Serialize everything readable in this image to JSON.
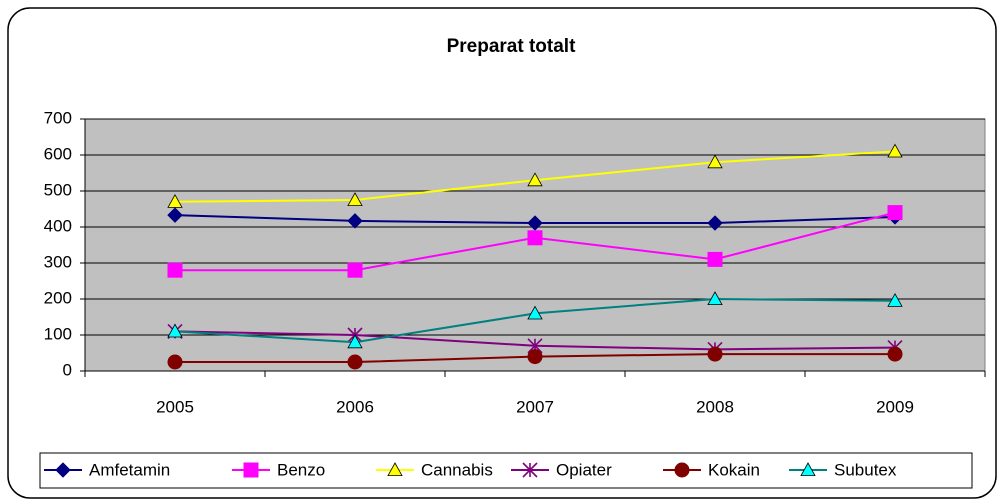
{
  "chart_data": {
    "type": "line",
    "title": "Preparat totalt",
    "categories": [
      "2005",
      "2006",
      "2007",
      "2008",
      "2009"
    ],
    "series": [
      {
        "name": "Amfetamin",
        "color": "#000080",
        "marker": "diamond",
        "values": [
          433,
          417,
          411,
          411,
          428
        ]
      },
      {
        "name": "Benzo",
        "color": "#ff00ff",
        "marker": "square",
        "values": [
          280,
          280,
          370,
          310,
          440
        ]
      },
      {
        "name": "Cannabis",
        "color": "#ffff00",
        "marker": "triangle",
        "values": [
          470,
          475,
          530,
          580,
          610
        ]
      },
      {
        "name": "Opiater",
        "color": "#800080",
        "marker": "star",
        "values": [
          110,
          100,
          70,
          60,
          65
        ]
      },
      {
        "name": "Kokain",
        "color": "#800000",
        "marker": "circle",
        "values": [
          25,
          25,
          40,
          47,
          47
        ]
      },
      {
        "name": "Subutex",
        "color": "#008080",
        "marker": "triangle",
        "values": [
          110,
          80,
          160,
          200,
          195
        ]
      }
    ],
    "ylim": [
      0,
      700
    ],
    "yticks": [
      0,
      100,
      200,
      300,
      400,
      500,
      600,
      700
    ],
    "grid": true,
    "plot_background": "#c0c0c0",
    "legend": "bottom"
  }
}
